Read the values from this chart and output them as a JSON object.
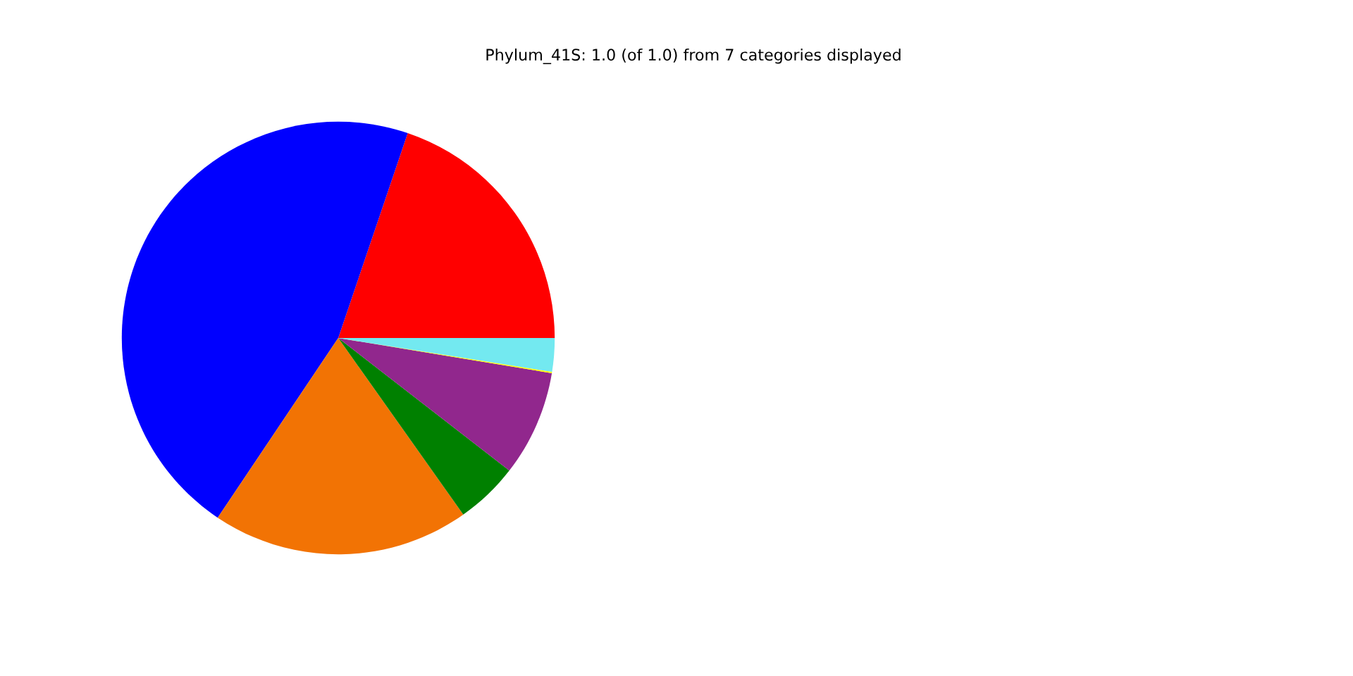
{
  "chart_data": {
    "type": "pie",
    "title": "Phylum_41S: 1.0 (of 1.0) from 7 categories displayed",
    "categories": [
      null,
      null,
      null,
      null,
      null,
      null,
      null
    ],
    "values": [
      19.8,
      45.8,
      19.2,
      4.7,
      7.9,
      0.1,
      2.5
    ],
    "colors": [
      "#ff0000",
      "#0000ff",
      "#f27304",
      "#008000",
      "#91278d",
      "#ffff00",
      "#73e9f0"
    ]
  }
}
